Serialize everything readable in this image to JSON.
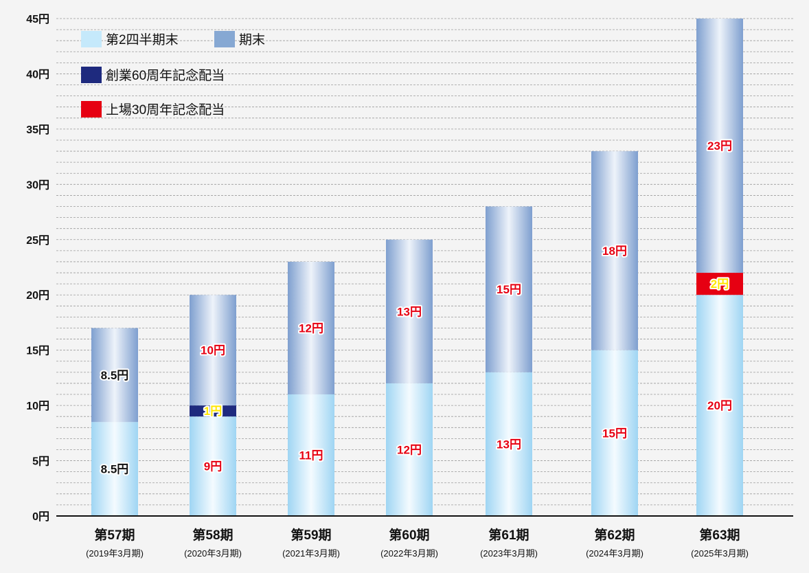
{
  "chart_data": {
    "type": "bar",
    "stacked": true,
    "categories": [
      "第57期",
      "第58期",
      "第59期",
      "第60期",
      "第61期",
      "第62期",
      "第63期"
    ],
    "sublabels": [
      "(2019年3月期)",
      "(2020年3月期)",
      "(2021年3月期)",
      "(2022年3月期)",
      "(2023年3月期)",
      "(2024年3月期)",
      "(2025年3月期)"
    ],
    "series": [
      {
        "name": "第2四半期末",
        "color": "#bfe6fa",
        "values": [
          8.5,
          9,
          11,
          12,
          13,
          15,
          20
        ],
        "labels": [
          "8.5円",
          "9円",
          "11円",
          "12円",
          "13円",
          "15円",
          "20円"
        ]
      },
      {
        "name": "創業60周年記念配当",
        "color": "#1e2a7e",
        "values": [
          0,
          1,
          0,
          0,
          0,
          0,
          0
        ],
        "labels": [
          "",
          "1円",
          "",
          "",
          "",
          "",
          ""
        ]
      },
      {
        "name": "上場30周年記念配当",
        "color": "#e60012",
        "values": [
          0,
          0,
          0,
          0,
          0,
          0,
          2
        ],
        "labels": [
          "",
          "",
          "",
          "",
          "",
          "",
          "2円"
        ]
      },
      {
        "name": "期末",
        "color": "#86a8d3",
        "values": [
          8.5,
          10,
          12,
          13,
          15,
          18,
          23
        ],
        "labels": [
          "8.5円",
          "10円",
          "12円",
          "13円",
          "15円",
          "18円",
          "23円"
        ]
      }
    ],
    "ylim": [
      0,
      45
    ],
    "yticks": [
      "0円",
      "5円",
      "10円",
      "15円",
      "20円",
      "25円",
      "30円",
      "35円",
      "40円",
      "45円"
    ],
    "grid": true,
    "legend_position": "top-left"
  }
}
